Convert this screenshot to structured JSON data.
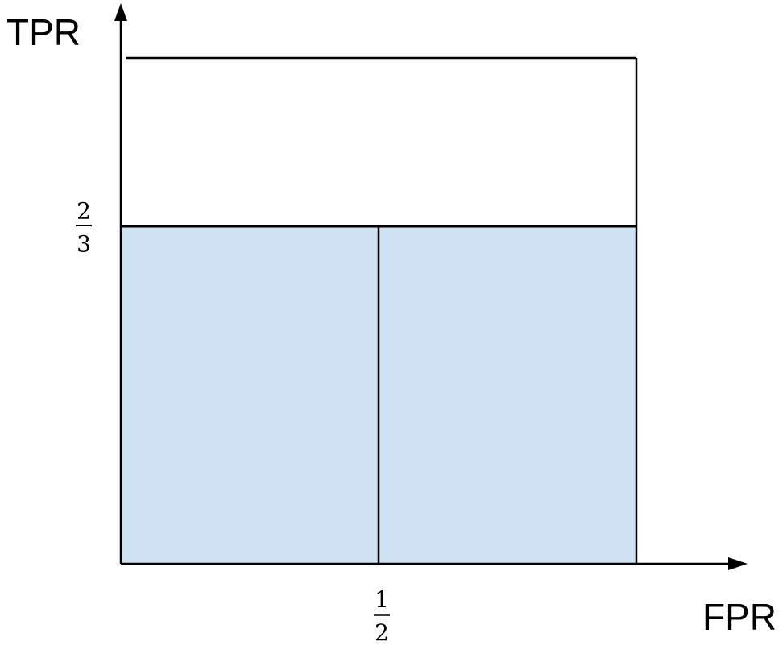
{
  "chart_data": {
    "type": "area",
    "title": "",
    "xlabel": "FPR",
    "ylabel": "TPR",
    "xlim": [
      0,
      1
    ],
    "ylim": [
      0,
      1
    ],
    "grid": false,
    "colors": {
      "fill": "#cfe2f3",
      "line": "#000000"
    },
    "x_ticks": [
      {
        "value": 0.5,
        "numerator": "1",
        "denominator": "2"
      }
    ],
    "y_ticks": [
      {
        "value": 0.6667,
        "numerator": "2",
        "denominator": "3"
      }
    ],
    "roc_step": {
      "x": [
        0,
        0.5,
        1
      ],
      "y": [
        0.6667,
        0.6667,
        0.6667
      ]
    },
    "shaded_region": {
      "x": [
        0,
        1
      ],
      "y_top": 0.6667
    },
    "divider": {
      "x": 0.5,
      "y_from": 0,
      "y_to": 0.6667
    },
    "unit_box": {
      "x": [
        0,
        1
      ],
      "y": [
        0,
        1
      ]
    }
  }
}
